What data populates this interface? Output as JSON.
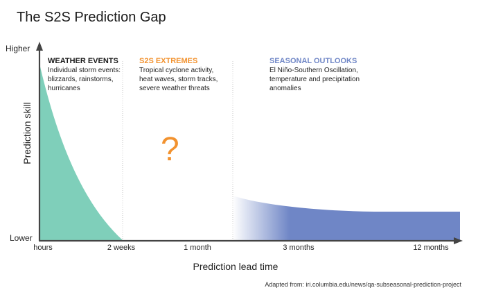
{
  "title": "The S2S Prediction Gap",
  "y_axis": {
    "title": "Prediction skill",
    "high_label": "Higher",
    "low_label": "Lower"
  },
  "x_axis": {
    "title": "Prediction lead time",
    "ticks": [
      "hours",
      "2 weeks",
      "1 month",
      "3 months",
      "12 months"
    ]
  },
  "zones": [
    {
      "heading": "WEATHER EVENTS",
      "color": "#1a1a1a",
      "body": "Individual storm events: blizzards, rainstorms, hurricanes"
    },
    {
      "heading": "S2S EXTREMES",
      "color": "#f2922f",
      "body": "Tropical cyclone activity, heat waves, storm tracks, severe weather threats"
    },
    {
      "heading": "SEASONAL OUTLOOKS",
      "color": "#6f86c6",
      "body": "El Niño-Southern Oscillation, temperature and precipitation anomalies"
    }
  ],
  "gap_symbol": "?",
  "source": "Adapted from: iri.columbia.edu/news/qa-subseasonal-prediction-project",
  "colors": {
    "weather_fill": "#7fcfba",
    "seasonal_fill": "#6f86c6",
    "question": "#f2922f",
    "axis": "#444444",
    "divider": "#bbbbbb"
  }
}
